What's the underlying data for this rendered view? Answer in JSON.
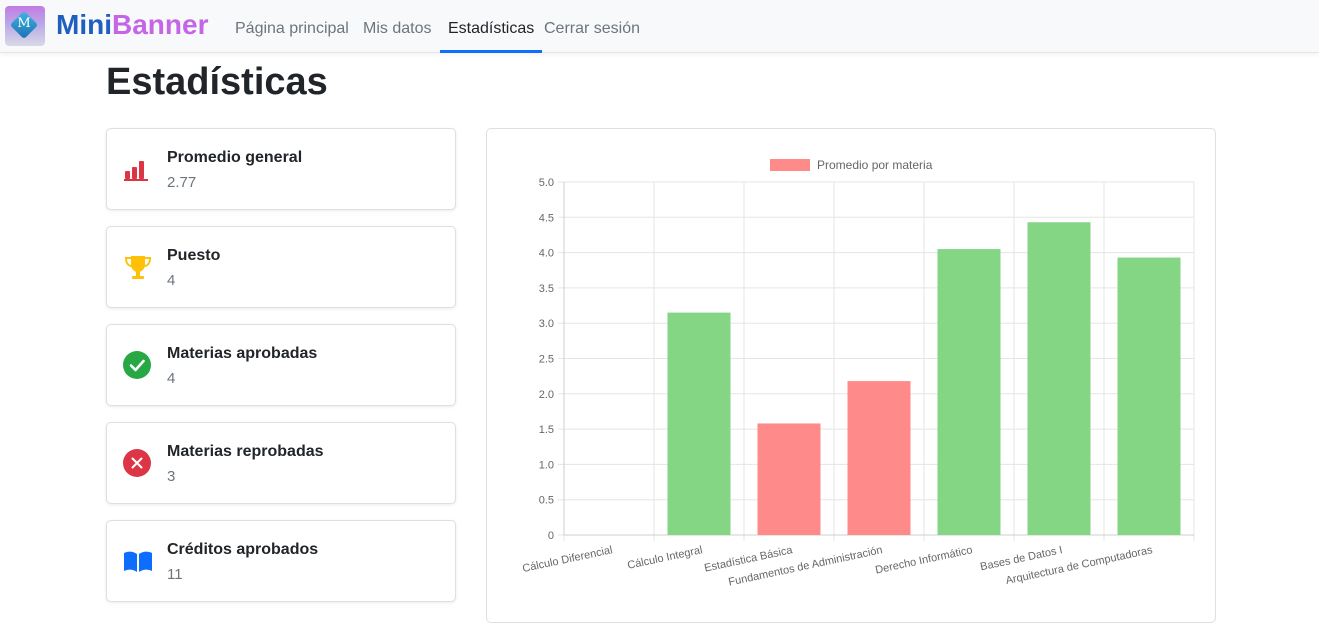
{
  "app": {
    "brand_part1": "Mini",
    "brand_part2": "Banner",
    "logo_letter": "M"
  },
  "nav": {
    "items": [
      {
        "label": "Página principal",
        "active": false
      },
      {
        "label": "Mis datos",
        "active": false
      },
      {
        "label": "Estadísticas",
        "active": true
      },
      {
        "label": "Cerrar sesión",
        "active": false
      }
    ]
  },
  "page": {
    "title": "Estadísticas"
  },
  "stats": [
    {
      "label": "Promedio general",
      "value": "2.77",
      "icon": "bar-chart-icon",
      "color": "#dc3545"
    },
    {
      "label": "Puesto",
      "value": "4",
      "icon": "trophy-icon",
      "color": "#ffc107"
    },
    {
      "label": "Materias aprobadas",
      "value": "4",
      "icon": "check-circle-icon",
      "color": "#28a745"
    },
    {
      "label": "Materias reprobadas",
      "value": "3",
      "icon": "x-circle-icon",
      "color": "#dc3545"
    },
    {
      "label": "Créditos aprobados",
      "value": "11",
      "icon": "book-icon",
      "color": "#0d6efd"
    }
  ],
  "chart_data": {
    "type": "bar",
    "legend": "Promedio por materia",
    "legend_position": "top",
    "categories": [
      "Cálculo Diferencial",
      "Cálculo Integral",
      "Estadística Básica",
      "Fundamentos de Administración",
      "Derecho Informático",
      "Bases de Datos I",
      "Arquitectura de Computadoras"
    ],
    "values": [
      0,
      3.15,
      1.58,
      2.18,
      4.05,
      4.43,
      3.93
    ],
    "passing_threshold": 3.0,
    "colors": {
      "pass": "#84d684",
      "fail": "#ff8a8a"
    },
    "ylim": [
      0,
      5.0
    ],
    "yticks": [
      "5.0",
      "4.5",
      "4.0",
      "3.5",
      "3.0",
      "2.5",
      "2.0",
      "1.5",
      "1.0",
      "0.5",
      "0"
    ],
    "grid": true
  }
}
